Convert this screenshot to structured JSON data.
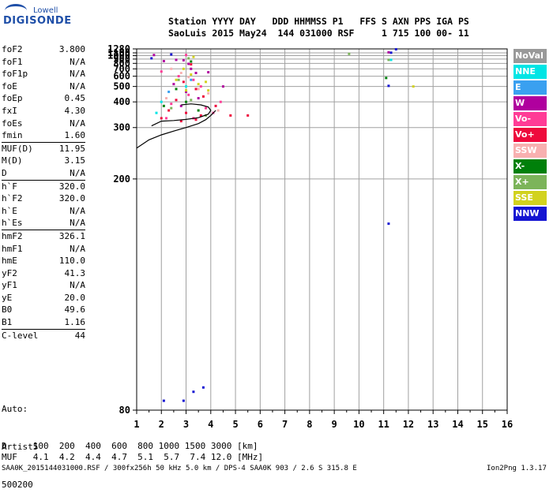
{
  "logo": {
    "top": "Lowell",
    "main": "DIGISONDE"
  },
  "header": {
    "line1": "Station YYYY DAY   DDD HHMMSS P1   FFS S AXN PPS IGA PS",
    "line2": "SaoLuis 2015 May24  144 031000 RSF     1 715 100 00- 11"
  },
  "parameters": [
    {
      "name": "foF2",
      "value": "3.800"
    },
    {
      "name": "foF1",
      "value": "N/A"
    },
    {
      "name": "foF1p",
      "value": "N/A"
    },
    {
      "name": "foE",
      "value": "N/A"
    },
    {
      "name": "foEp",
      "value": "0.45"
    },
    {
      "name": "fxI",
      "value": "4.30"
    },
    {
      "name": "foEs",
      "value": "N/A"
    },
    {
      "name": "fmin",
      "value": "1.60",
      "sep_after": true
    },
    {
      "name": "MUF(D)",
      "value": "11.95"
    },
    {
      "name": "M(D)",
      "value": "3.15"
    },
    {
      "name": "D",
      "value": "N/A",
      "sep_after": true
    },
    {
      "name": "h`F",
      "value": "320.0"
    },
    {
      "name": "h`F2",
      "value": "320.0"
    },
    {
      "name": "h`E",
      "value": "N/A"
    },
    {
      "name": "h`Es",
      "value": "N/A",
      "sep_after": true
    },
    {
      "name": "hmF2",
      "value": "326.1"
    },
    {
      "name": "hmF1",
      "value": "N/A"
    },
    {
      "name": "hmE",
      "value": "110.0"
    },
    {
      "name": "yF2",
      "value": "41.3"
    },
    {
      "name": "yF1",
      "value": "N/A"
    },
    {
      "name": "yE",
      "value": "20.0"
    },
    {
      "name": "B0",
      "value": "49.6"
    },
    {
      "name": "B1",
      "value": "1.16",
      "sep_after": true
    },
    {
      "name": "C-level",
      "value": "44",
      "sep_after": true
    }
  ],
  "autoscale": {
    "line1": "Auto:",
    "line2": "Artist5",
    "line3": "500200"
  },
  "legend": [
    {
      "label": "NoVal",
      "color": "#999999"
    },
    {
      "label": "NNE",
      "color": "#00e5e5"
    },
    {
      "label": "E",
      "color": "#3aa0f0"
    },
    {
      "label": "W",
      "color": "#b0009e"
    },
    {
      "label": "Vo-",
      "color": "#ff3c96"
    },
    {
      "label": "Vo+",
      "color": "#ee0a3c"
    },
    {
      "label": "SSW",
      "color": "#f8b0b0"
    },
    {
      "label": "X-",
      "color": "#00800a"
    },
    {
      "label": "X+",
      "color": "#7cb45a"
    },
    {
      "label": "SSE",
      "color": "#d2d21e"
    },
    {
      "label": "NNW",
      "color": "#1414d2"
    }
  ],
  "footer": {
    "d_row": "D     100  200  400  600  800 1000 1500 3000 [km]",
    "muf_row": "MUF   4.1  4.2  4.4  4.7  5.1  5.7  7.4 12.0 [MHz]",
    "file_line": "SAA0K_2015144031000.RSF / 300fx256h 50 kHz 5.0 km / DPS-4 SAA0K 903 / 2.6 S 315.8 E",
    "version": "Ion2Png 1.3.17"
  },
  "chart_data": {
    "type": "scatter",
    "title": "",
    "xlabel": "",
    "ylabel": "",
    "xlim": [
      1,
      16
    ],
    "ylim": [
      80,
      1280
    ],
    "x_scale": "linear",
    "y_scale": "reciprocal",
    "x_ticks": [
      1,
      2,
      3,
      4,
      5,
      6,
      7,
      8,
      9,
      10,
      11,
      12,
      13,
      14,
      15,
      16
    ],
    "y_ticks": [
      80,
      200,
      300,
      400,
      500,
      600,
      700,
      800,
      900,
      1000,
      1100,
      1280
    ],
    "grid": true,
    "series": [
      {
        "name": "W",
        "points": [
          [
            1.7,
            1020
          ],
          [
            2.1,
            850
          ],
          [
            2.6,
            880
          ],
          [
            2.9,
            870
          ],
          [
            3.1,
            790
          ],
          [
            3.2,
            700
          ],
          [
            2.5,
            520
          ],
          [
            3.4,
            640
          ],
          [
            3.9,
            650
          ],
          [
            4.5,
            500
          ],
          [
            3.0,
            460
          ],
          [
            3.5,
            420
          ],
          [
            2.8,
            380
          ],
          [
            11.2,
            1120
          ]
        ]
      },
      {
        "name": "Vo-",
        "points": [
          [
            3.0,
            1020
          ],
          [
            2.0,
            660
          ],
          [
            2.7,
            600
          ],
          [
            3.3,
            560
          ],
          [
            3.6,
            500
          ],
          [
            3.1,
            440
          ],
          [
            2.4,
            390
          ],
          [
            3.8,
            370
          ],
          [
            4.1,
            350
          ],
          [
            2.2,
            330
          ],
          [
            3.3,
            330
          ],
          [
            4.4,
            400
          ]
        ]
      },
      {
        "name": "Vo+",
        "points": [
          [
            3.2,
            780
          ],
          [
            2.9,
            540
          ],
          [
            3.4,
            480
          ],
          [
            3.7,
            430
          ],
          [
            2.6,
            410
          ],
          [
            2.3,
            360
          ],
          [
            3.0,
            350
          ],
          [
            3.6,
            340
          ],
          [
            4.2,
            380
          ],
          [
            2.0,
            330
          ],
          [
            2.8,
            320
          ],
          [
            3.4,
            325
          ],
          [
            5.5,
            340
          ],
          [
            4.8,
            340
          ]
        ]
      },
      {
        "name": "SSW",
        "points": [
          [
            2.4,
            700
          ],
          [
            2.8,
            640
          ],
          [
            3.1,
            590
          ],
          [
            3.5,
            480
          ],
          [
            2.2,
            420
          ],
          [
            3.9,
            450
          ],
          [
            4.3,
            360
          ]
        ]
      },
      {
        "name": "X-",
        "points": [
          [
            3.2,
            840
          ],
          [
            2.6,
            480
          ],
          [
            3.0,
            400
          ],
          [
            2.1,
            380
          ],
          [
            3.5,
            360
          ],
          [
            11.1,
            580
          ]
        ]
      },
      {
        "name": "X+",
        "points": [
          [
            3.1,
            920
          ],
          [
            2.7,
            560
          ],
          [
            3.2,
            410
          ],
          [
            2.4,
            370
          ],
          [
            3.8,
            340
          ],
          [
            9.6,
            1060
          ],
          [
            11.2,
            880
          ]
        ]
      },
      {
        "name": "SSE",
        "points": [
          [
            3.3,
            960
          ],
          [
            2.9,
            700
          ],
          [
            3.2,
            620
          ],
          [
            2.6,
            560
          ],
          [
            3.5,
            520
          ],
          [
            3.8,
            540
          ],
          [
            3.0,
            470
          ],
          [
            3.9,
            470
          ],
          [
            12.2,
            500
          ]
        ]
      },
      {
        "name": "NNW",
        "points": [
          [
            1.6,
            920
          ],
          [
            2.4,
            1040
          ],
          [
            11.2,
            505
          ],
          [
            11.3,
            1105
          ],
          [
            11.5,
            1260
          ],
          [
            11.2,
            155
          ],
          [
            2.1,
            82
          ],
          [
            2.9,
            82
          ],
          [
            3.3,
            84
          ],
          [
            3.7,
            85
          ]
        ]
      },
      {
        "name": "NNE",
        "points": [
          [
            2.0,
            400
          ],
          [
            1.8,
            350
          ],
          [
            3.0,
            500
          ],
          [
            11.3,
            880
          ]
        ]
      },
      {
        "name": "E",
        "points": [
          [
            3.2,
            560
          ],
          [
            2.3,
            460
          ]
        ]
      }
    ],
    "profile_curves": [
      {
        "name": "profile",
        "points": [
          [
            1.0,
            250
          ],
          [
            1.5,
            268
          ],
          [
            2.0,
            280
          ],
          [
            2.5,
            290
          ],
          [
            3.0,
            300
          ],
          [
            3.5,
            312
          ],
          [
            3.8,
            325
          ],
          [
            4.0,
            340
          ],
          [
            4.2,
            360
          ]
        ]
      },
      {
        "name": "trace",
        "points": [
          [
            1.6,
            305
          ],
          [
            2.0,
            320
          ],
          [
            2.5,
            322
          ],
          [
            3.0,
            326
          ],
          [
            3.5,
            332
          ],
          [
            3.9,
            345
          ],
          [
            4.0,
            360
          ],
          [
            3.9,
            375
          ],
          [
            3.6,
            385
          ],
          [
            3.2,
            390
          ],
          [
            2.8,
            385
          ]
        ]
      }
    ]
  }
}
